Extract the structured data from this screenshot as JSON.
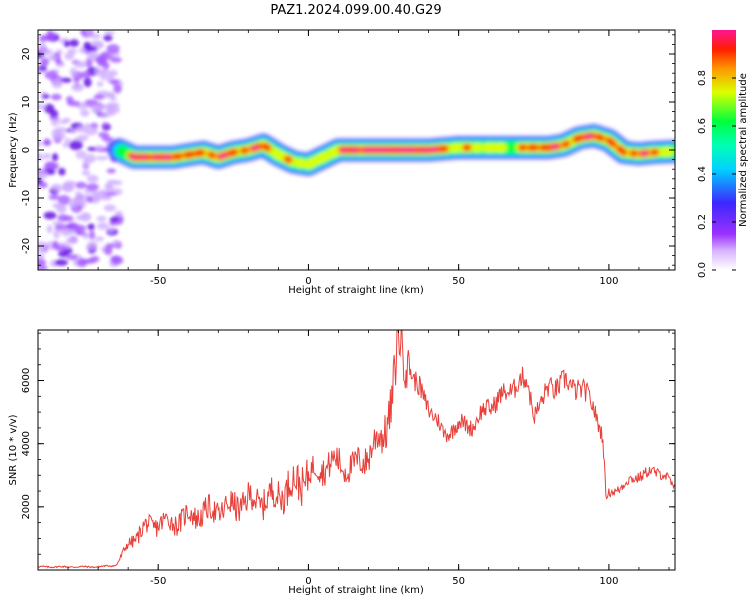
{
  "figure": {
    "title": "PAZ1.2024.099.00.40.G29"
  },
  "colors": {
    "snr_line": "#e8403a",
    "colormap": [
      "#ffffff",
      "#9b30ff",
      "#3c28ff",
      "#00d2ff",
      "#00ff3c",
      "#dcff00",
      "#ff3c00",
      "#ff1493"
    ]
  },
  "chart_data": [
    {
      "type": "heatmap",
      "name": "spectrogram",
      "xlabel": "Height of straight line (km)",
      "ylabel": "Frequency (Hz)",
      "xlim": [
        -90,
        122
      ],
      "ylim": [
        -25,
        25
      ],
      "xticks": [
        -50,
        0,
        50,
        100
      ],
      "yticks": [
        -20,
        -10,
        0,
        10,
        20
      ],
      "xtick_labels": [
        "-50",
        "0",
        "50",
        "100"
      ],
      "ytick_labels": [
        "-20",
        "-10",
        "0",
        "10",
        "20"
      ],
      "colorbar": {
        "label": "Normalized spectral amplitude",
        "range": [
          0,
          1
        ],
        "ticks": [
          0.0,
          0.2,
          0.4,
          0.6,
          0.8
        ],
        "tick_labels": [
          "0.0",
          "0.2",
          "0.4",
          "0.6",
          "0.8"
        ]
      },
      "noise_region_x": [
        -90,
        -63
      ],
      "ridge": {
        "x": [
          -63,
          -58,
          -52,
          -45,
          -40,
          -35,
          -30,
          -25,
          -20,
          -15,
          -10,
          -5,
          0,
          5,
          10,
          15,
          20,
          30,
          40,
          50,
          60,
          70,
          80,
          85,
          90,
          95,
          100,
          105,
          110,
          115,
          122
        ],
        "freq": [
          0,
          -1.5,
          -1.5,
          -1.5,
          -1,
          -0.5,
          -1.5,
          -0.5,
          0,
          1,
          -1,
          -2.5,
          -3,
          -1.5,
          0,
          0,
          0,
          0,
          0,
          0.5,
          0.5,
          0.5,
          0.5,
          1,
          2.5,
          3,
          2,
          -0.5,
          -0.8,
          -0.5,
          -0.3
        ],
        "amplitude": [
          0.3,
          0.8,
          0.85,
          0.8,
          0.75,
          0.7,
          0.8,
          0.75,
          0.7,
          0.75,
          0.65,
          0.6,
          0.6,
          0.65,
          0.75,
          0.85,
          0.95,
          0.95,
          0.9,
          0.6,
          0.55,
          0.6,
          0.85,
          0.7,
          0.75,
          0.85,
          0.7,
          0.75,
          0.75,
          0.7,
          0.55
        ]
      }
    },
    {
      "type": "line",
      "name": "snr",
      "xlabel": "Height of straight line (km)",
      "ylabel": "SNR (10 * v/v)",
      "xlim": [
        -90,
        122
      ],
      "ylim": [
        0,
        7600
      ],
      "xticks": [
        -50,
        0,
        50,
        100
      ],
      "yticks": [
        2000,
        4000,
        6000
      ],
      "xtick_labels": [
        "-50",
        "0",
        "50",
        "100"
      ],
      "ytick_labels": [
        "2000",
        "4000",
        "6000"
      ],
      "x": [
        -90,
        -80,
        -70,
        -64,
        -60,
        -55,
        -50,
        -45,
        -40,
        -35,
        -30,
        -25,
        -20,
        -15,
        -10,
        -5,
        0,
        5,
        10,
        15,
        20,
        25,
        28,
        30,
        33,
        35,
        40,
        45,
        50,
        55,
        60,
        65,
        70,
        73,
        75,
        78,
        80,
        85,
        90,
        95,
        98,
        99,
        100,
        105,
        110,
        115,
        118,
        122
      ],
      "y": [
        100,
        100,
        100,
        150,
        800,
        1300,
        1500,
        1500,
        1700,
        1800,
        1900,
        2000,
        2200,
        2200,
        2400,
        2700,
        3000,
        3300,
        3400,
        3200,
        3700,
        4300,
        5500,
        7200,
        6900,
        6000,
        5200,
        4300,
        4600,
        4600,
        5200,
        5500,
        6000,
        5900,
        5000,
        5300,
        5800,
        5900,
        5800,
        5200,
        4200,
        2300,
        2400,
        2700,
        3000,
        3100,
        3100,
        2500
      ]
    }
  ]
}
